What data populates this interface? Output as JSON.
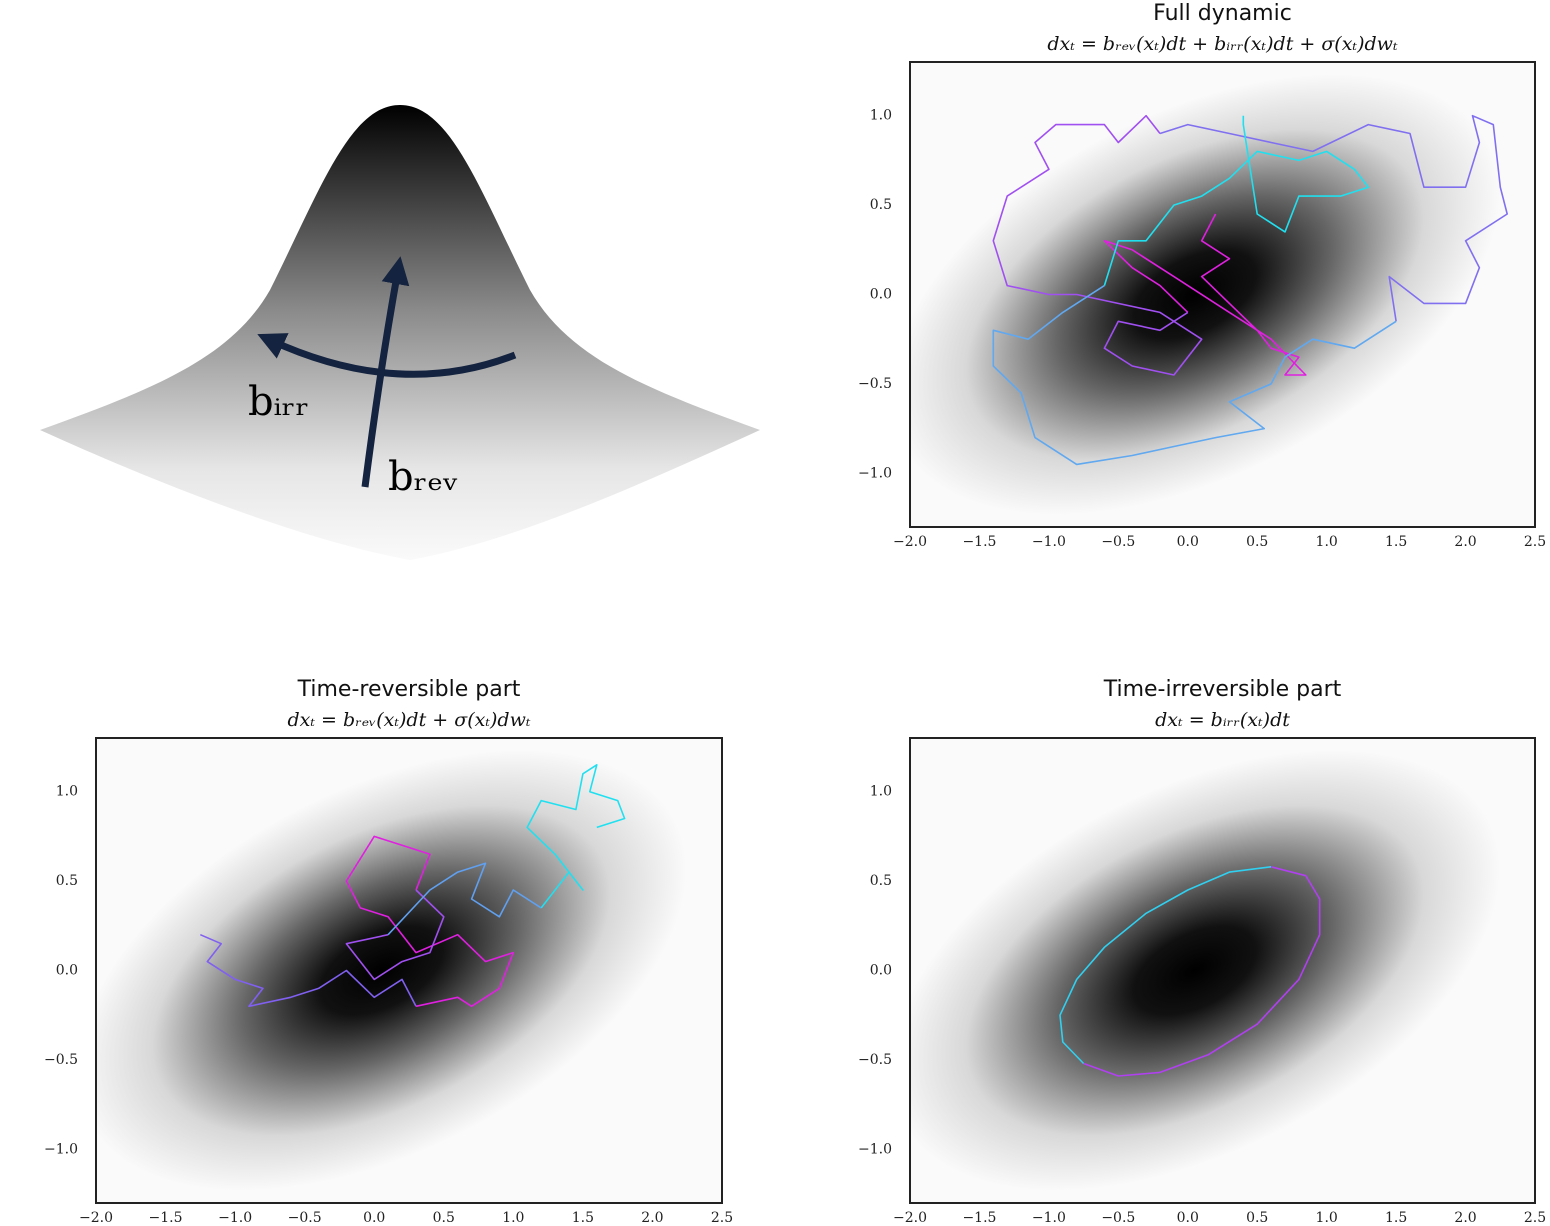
{
  "illustration": {
    "labels": [
      "bᵢᵣᵣ",
      "bᵣₑᵥ"
    ]
  },
  "chart_data": [
    {
      "type": "line",
      "title": "Full dynamic",
      "subtitle": "dxₜ = bᵣₑᵥ(xₜ)dt + bᵢᵣᵣ(xₜ)dt + σ(xₜ)dwₜ",
      "xlim": [
        -2,
        2.5
      ],
      "ylim": [
        -1.3,
        1.3
      ],
      "xticks": [
        {
          "value": -2,
          "label": "−2.0"
        },
        {
          "value": -1.5,
          "label": "−1.5"
        },
        {
          "value": -1,
          "label": "−1.0"
        },
        {
          "value": -0.5,
          "label": "−0.5"
        },
        {
          "value": 0,
          "label": "0.0"
        },
        0.5,
        {
          "value": 1,
          "label": "1.0"
        },
        1.5,
        {
          "value": 2,
          "label": "2.0"
        },
        2.5
      ],
      "yticks": [
        {
          "value": -1,
          "label": "−1.0"
        },
        {
          "value": -0.5,
          "label": "−0.5"
        },
        {
          "value": 0,
          "label": "0.0"
        },
        0.5,
        {
          "value": 1,
          "label": "1.0"
        }
      ],
      "grid": false,
      "series": [
        {
          "color": "#e020e0",
          "x": [
            0.2,
            0.1,
            0.3,
            0.1,
            0.3,
            0.5,
            0.6,
            0.8,
            0.7,
            0.85,
            0.6,
            0.3,
            -0.1,
            -0.4,
            -0.6,
            -0.4,
            -0.2,
            0.0
          ],
          "values": [
            0.45,
            0.3,
            0.2,
            0.1,
            -0.05,
            -0.2,
            -0.3,
            -0.35,
            -0.45,
            -0.45,
            -0.25,
            -0.1,
            0.1,
            0.25,
            0.3,
            0.15,
            0.05,
            -0.1
          ]
        },
        {
          "color": "#a050f0",
          "x": [
            0.0,
            -0.2,
            -0.5,
            -0.6,
            -0.4,
            -0.1,
            0.1,
            -0.2,
            -0.8,
            -1.0,
            -1.3,
            -1.4,
            -1.3,
            -1.0,
            -1.1,
            -0.95,
            -0.6,
            -0.5,
            -0.3,
            -0.2
          ],
          "values": [
            -0.1,
            -0.2,
            -0.15,
            -0.3,
            -0.4,
            -0.45,
            -0.25,
            -0.1,
            0.0,
            0.0,
            0.05,
            0.3,
            0.55,
            0.7,
            0.85,
            0.95,
            0.95,
            0.85,
            1.0,
            0.9
          ]
        },
        {
          "color": "#8070f0",
          "x": [
            -0.2,
            0.0,
            0.3,
            0.6,
            0.9,
            1.3,
            1.6,
            1.7,
            2.0,
            2.1,
            2.05,
            2.2,
            2.25,
            2.3,
            2.0,
            2.1,
            2.0,
            1.7,
            1.45,
            1.5
          ],
          "values": [
            0.9,
            0.95,
            0.9,
            0.85,
            0.8,
            0.95,
            0.9,
            0.6,
            0.6,
            0.85,
            1.0,
            0.95,
            0.6,
            0.45,
            0.3,
            0.15,
            -0.05,
            -0.05,
            0.1,
            -0.15
          ]
        },
        {
          "color": "#60a8f0",
          "x": [
            1.5,
            1.2,
            0.9,
            0.7,
            0.6,
            0.3,
            0.55,
            0.2,
            -0.1,
            -0.4,
            -0.8,
            -1.1,
            -1.2,
            -1.4,
            -1.4,
            -1.15,
            -0.9,
            -0.6
          ],
          "values": [
            -0.15,
            -0.3,
            -0.25,
            -0.35,
            -0.5,
            -0.6,
            -0.75,
            -0.8,
            -0.85,
            -0.9,
            -0.95,
            -0.8,
            -0.55,
            -0.4,
            -0.2,
            -0.25,
            -0.1,
            0.05
          ]
        },
        {
          "color": "#20e0f0",
          "x": [
            -0.6,
            -0.5,
            -0.3,
            -0.1,
            0.1,
            0.3,
            0.5,
            0.8,
            1.0,
            1.2,
            1.3,
            1.1,
            0.8,
            0.7,
            0.5,
            0.4,
            0.4
          ],
          "values": [
            0.05,
            0.3,
            0.3,
            0.5,
            0.55,
            0.65,
            0.8,
            0.75,
            0.8,
            0.7,
            0.6,
            0.55,
            0.55,
            0.35,
            0.45,
            0.95,
            1.0
          ]
        }
      ]
    },
    {
      "type": "line",
      "title": "Time-reversible part",
      "subtitle": "dxₜ = bᵣₑᵥ(xₜ)dt + σ(xₜ)dwₜ",
      "xlim": [
        -2,
        2.5
      ],
      "ylim": [
        -1.3,
        1.3
      ],
      "xticks": [
        {
          "value": -2,
          "label": "−2.0"
        },
        {
          "value": -1.5,
          "label": "−1.5"
        },
        {
          "value": -1,
          "label": "−1.0"
        },
        {
          "value": -0.5,
          "label": "−0.5"
        },
        {
          "value": 0,
          "label": "0.0"
        },
        0.5,
        {
          "value": 1,
          "label": "1.0"
        },
        1.5,
        {
          "value": 2,
          "label": "2.0"
        },
        2.5
      ],
      "yticks": [
        {
          "value": -1,
          "label": "−1.0"
        },
        {
          "value": -0.5,
          "label": "−0.5"
        },
        {
          "value": 0,
          "label": "0.0"
        },
        0.5,
        {
          "value": 1,
          "label": "1.0"
        }
      ],
      "grid": false,
      "series": [
        {
          "color": "#8060f0",
          "x": [
            -1.25,
            -1.1,
            -1.2,
            -1.0,
            -0.8,
            -0.9,
            -0.6,
            -0.4,
            -0.2,
            0.0,
            0.2,
            0.3
          ],
          "values": [
            0.2,
            0.15,
            0.05,
            -0.05,
            -0.1,
            -0.2,
            -0.15,
            -0.1,
            0.0,
            -0.15,
            -0.05,
            -0.2
          ]
        },
        {
          "color": "#e020e0",
          "x": [
            0.3,
            0.6,
            0.7,
            0.9,
            1.0,
            0.8,
            0.6,
            0.3,
            0.1,
            -0.1,
            -0.2,
            0.0,
            0.2,
            0.4,
            0.3
          ],
          "values": [
            -0.2,
            -0.15,
            -0.2,
            -0.1,
            0.1,
            0.05,
            0.2,
            0.1,
            0.3,
            0.35,
            0.5,
            0.75,
            0.7,
            0.65,
            0.45
          ]
        },
        {
          "color": "#a050f0",
          "x": [
            0.3,
            0.5,
            0.4,
            0.2,
            0.0,
            -0.2,
            0.1
          ],
          "values": [
            0.45,
            0.3,
            0.1,
            0.05,
            -0.05,
            0.15,
            0.2
          ]
        },
        {
          "color": "#60a0f0",
          "x": [
            0.1,
            0.4,
            0.6,
            0.8,
            0.7,
            0.9,
            1.0,
            1.2
          ],
          "values": [
            0.2,
            0.45,
            0.55,
            0.6,
            0.4,
            0.3,
            0.45,
            0.35
          ]
        },
        {
          "color": "#20e0f0",
          "x": [
            1.2,
            1.4,
            1.5,
            1.3,
            1.1,
            1.2,
            1.45,
            1.5,
            1.6,
            1.55,
            1.75,
            1.8,
            1.6
          ],
          "values": [
            0.35,
            0.55,
            0.45,
            0.65,
            0.8,
            0.95,
            0.9,
            1.1,
            1.15,
            1.0,
            0.95,
            0.85,
            0.8
          ]
        }
      ]
    },
    {
      "type": "line",
      "title": "Time-irreversible part",
      "subtitle": "dxₜ = bᵢᵣᵣ(xₜ)dt",
      "xlim": [
        -2,
        2.5
      ],
      "ylim": [
        -1.3,
        1.3
      ],
      "xticks": [
        {
          "value": -2,
          "label": "−2.0"
        },
        {
          "value": -1.5,
          "label": "−1.5"
        },
        {
          "value": -1,
          "label": "−1.0"
        },
        {
          "value": -0.5,
          "label": "−0.5"
        },
        {
          "value": 0,
          "label": "0.0"
        },
        0.5,
        {
          "value": 1,
          "label": "1.0"
        },
        1.5,
        {
          "value": 2,
          "label": "2.0"
        },
        2.5
      ],
      "yticks": [
        {
          "value": -1,
          "label": "−1.0"
        },
        {
          "value": -0.5,
          "label": "−0.5"
        },
        {
          "value": 0,
          "label": "0.0"
        },
        0.5,
        {
          "value": 1,
          "label": "1.0"
        }
      ],
      "grid": false,
      "series": [
        {
          "color": "#30d0f0",
          "x": [
            0.6,
            0.3,
            0.0,
            -0.3,
            -0.6,
            -0.8,
            -0.92,
            -0.9,
            -0.75
          ],
          "values": [
            0.58,
            0.55,
            0.45,
            0.32,
            0.13,
            -0.05,
            -0.25,
            -0.4,
            -0.52
          ]
        },
        {
          "color": "#b040f0",
          "x": [
            -0.75,
            -0.5,
            -0.2,
            0.15,
            0.5,
            0.8,
            0.95,
            0.95,
            0.85,
            0.6
          ],
          "values": [
            -0.52,
            -0.59,
            -0.57,
            -0.47,
            -0.3,
            -0.05,
            0.2,
            0.4,
            0.53,
            0.58
          ]
        }
      ]
    }
  ]
}
